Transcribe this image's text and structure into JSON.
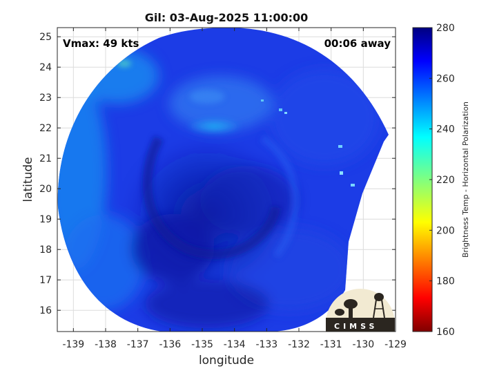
{
  "chart_data": {
    "type": "heatmap",
    "title": "Gil: 03-Aug-2025 11:00:00",
    "xlabel": "longitude",
    "ylabel": "latitude",
    "xlim": [
      -139.5,
      -129
    ],
    "ylim": [
      15.3,
      25.3
    ],
    "xticks": [
      -139,
      -138,
      -137,
      -136,
      -135,
      -134,
      -133,
      -132,
      -131,
      -130,
      -129
    ],
    "yticks": [
      16,
      17,
      18,
      19,
      20,
      21,
      22,
      23,
      24,
      25
    ],
    "grid": true,
    "annotations": {
      "vmax": "Vmax: 49 kts",
      "time_offset": "00:06 away"
    },
    "colorbar": {
      "label": "Brightness Temp - Horizontal Polarization",
      "range": [
        160,
        280
      ],
      "ticks": [
        160,
        180,
        200,
        220,
        240,
        260,
        280
      ],
      "colormap": "jet"
    },
    "field_center": {
      "lon": -134.5,
      "lat": 20.5
    },
    "swath_edges": [
      "-129.6 to -130.7 longitude"
    ],
    "features": {
      "coldest_region": {
        "lon": -134.4,
        "lat": 22.3,
        "value_approx": 245
      },
      "ambient_value_approx": 265,
      "warm_core_region_value_approx": 272
    },
    "logo_text": "CIMSS"
  }
}
